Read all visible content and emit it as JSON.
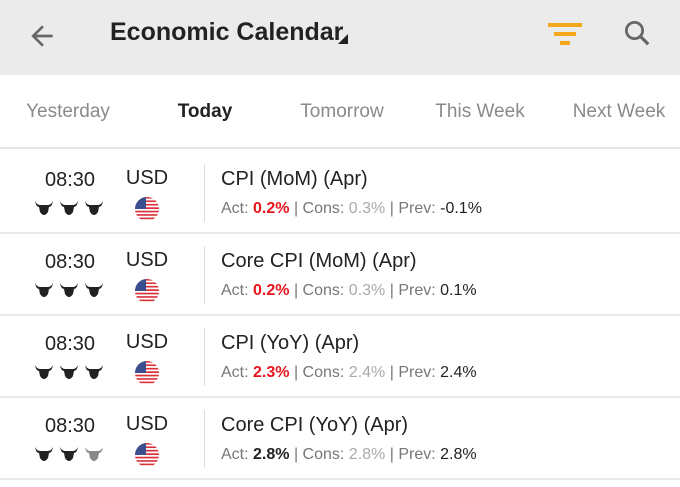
{
  "header": {
    "title": "Economic Calendar"
  },
  "tabs": [
    {
      "label": "Yesterday"
    },
    {
      "label": "Today"
    },
    {
      "label": "Tomorrow"
    },
    {
      "label": "This Week"
    },
    {
      "label": "Next Week"
    }
  ],
  "colors": {
    "accent": "#f5a81c",
    "actual_worse": "#e8151d"
  },
  "labels": {
    "act": "Act:",
    "cons": "Cons:",
    "prev": "Prev:",
    "sep": "|"
  },
  "events": [
    {
      "time": "08:30",
      "currency": "USD",
      "importance": 3,
      "name": "CPI (MoM) (Apr)",
      "actual": "0.2%",
      "actual_style": "red",
      "consensus": "0.3%",
      "previous": "-0.1%"
    },
    {
      "time": "08:30",
      "currency": "USD",
      "importance": 3,
      "name": "Core CPI (MoM) (Apr)",
      "actual": "0.2%",
      "actual_style": "red",
      "consensus": "0.3%",
      "previous": "0.1%"
    },
    {
      "time": "08:30",
      "currency": "USD",
      "importance": 3,
      "name": "CPI (YoY) (Apr)",
      "actual": "2.3%",
      "actual_style": "red",
      "consensus": "2.4%",
      "previous": "2.4%"
    },
    {
      "time": "08:30",
      "currency": "USD",
      "importance": 2,
      "name": "Core CPI (YoY) (Apr)",
      "actual": "2.8%",
      "actual_style": "neutral",
      "consensus": "2.8%",
      "previous": "2.8%"
    }
  ]
}
